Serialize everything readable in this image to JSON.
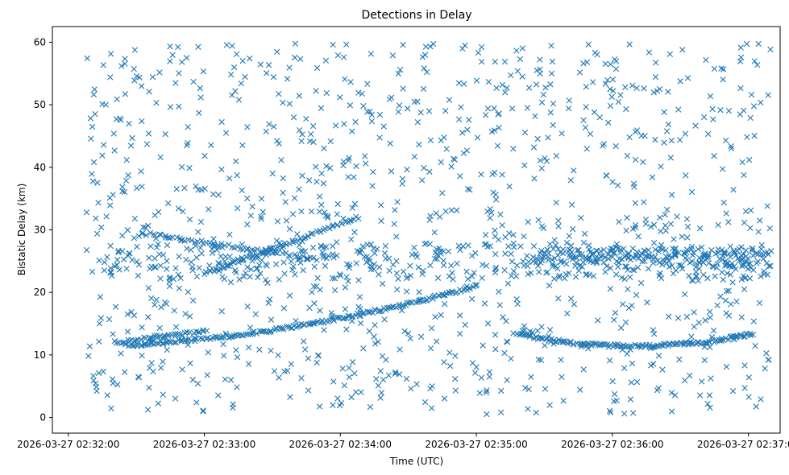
{
  "chart_data": {
    "type": "scatter",
    "title": "Detections in Delay",
    "xlabel": "Time (UTC)",
    "ylabel": "Bistatic Delay (km)",
    "marker": "x",
    "color": "#1f77b4",
    "grid": false,
    "legend": "none",
    "x_start": "2026-03-27 02:32:10",
    "x_end": "2026-03-27 02:37:10",
    "xlim_seconds": [
      -7,
      314
    ],
    "ylim": [
      -2.5,
      62.5
    ],
    "x_ticks": [
      {
        "label": "2026-03-27 02:32:00",
        "t": 0
      },
      {
        "label": "2026-03-27 02:33:00",
        "t": 60
      },
      {
        "label": "2026-03-27 02:34:00",
        "t": 120
      },
      {
        "label": "2026-03-27 02:35:00",
        "t": 180
      },
      {
        "label": "2026-03-27 02:36:00",
        "t": 240
      },
      {
        "label": "2026-03-27 02:37:00",
        "t": 300
      }
    ],
    "y_ticks": [
      0,
      10,
      20,
      30,
      40,
      50,
      60
    ],
    "x_units": "seconds since 2026-03-27 02:32:00",
    "tracks": [
      {
        "name": "rising track",
        "t_start": 25,
        "t_end": 180,
        "d_start": 11.5,
        "d_end": 21.0,
        "shape": "quadratic",
        "points": 190
      },
      {
        "name": "dip track",
        "t_start": 198,
        "t_end": 302,
        "d_start": 13.3,
        "d_mid": 11.4,
        "d_end": 13.4,
        "shape": "parabolic",
        "points": 150
      },
      {
        "name": "crossing track",
        "t_start": 60,
        "t_end": 128,
        "d_start": 23.0,
        "d_end": 32.0,
        "shape": "linear",
        "points": 70
      },
      {
        "name": "falling track",
        "t_start": 32,
        "t_end": 110,
        "d_start": 29.5,
        "d_end": 25.3,
        "shape": "linear",
        "points": 60
      },
      {
        "name": "late mid band",
        "t_start": 205,
        "t_end": 310,
        "d_start": 24.0,
        "d_end": 27.0,
        "shape": "band",
        "points": 200
      },
      {
        "name": "early low track",
        "t_start": 20,
        "t_end": 60,
        "d_start": 12.0,
        "d_end": 13.8,
        "shape": "linear",
        "points": 40
      }
    ],
    "clutter": {
      "t_range": [
        8,
        310
      ],
      "d_range": [
        0.5,
        59.8
      ],
      "points": 1050
    },
    "mid_cluster": {
      "t_range": [
        15,
        310
      ],
      "d_range": [
        22,
        28
      ],
      "points": 300
    }
  }
}
